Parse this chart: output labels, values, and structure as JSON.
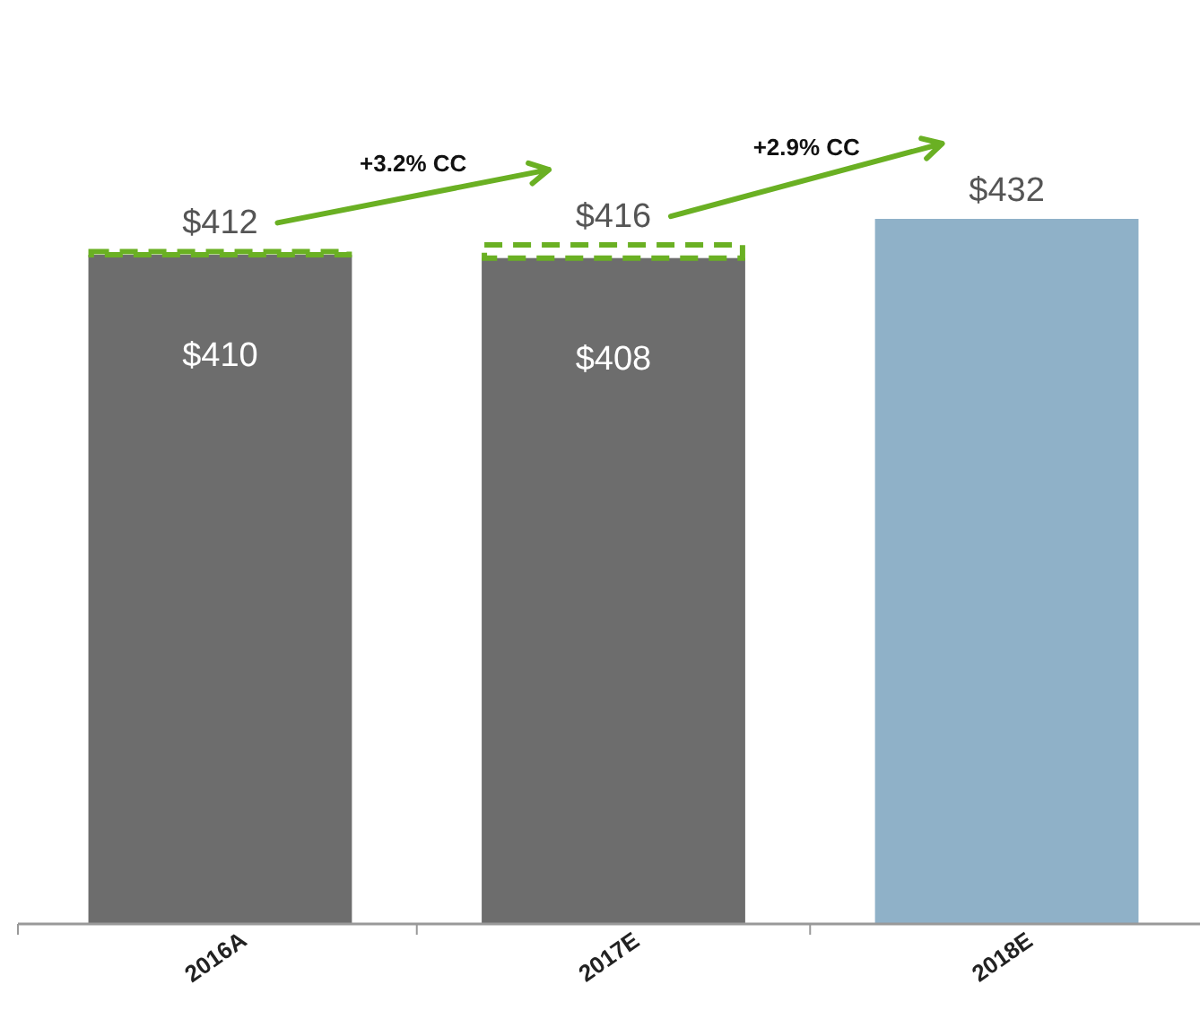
{
  "chart_data": {
    "type": "bar",
    "stacked": true,
    "categories": [
      "2016A",
      "2017E",
      "2018E"
    ],
    "series": [
      {
        "color": "#6d6d6d",
        "values": [
          410,
          408,
          null
        ],
        "value_labels": [
          "$410",
          "$408",
          null
        ]
      },
      {
        "color": "#6ab023",
        "line_style": "dashed",
        "values": [
          2,
          8,
          null
        ]
      },
      {
        "color": "#8fb1c8",
        "values": [
          null,
          null,
          432
        ]
      }
    ],
    "totals": [
      "$412",
      "$416",
      "$432"
    ],
    "annotations": [
      "+3.2% CC",
      "+2.9% CC"
    ]
  }
}
